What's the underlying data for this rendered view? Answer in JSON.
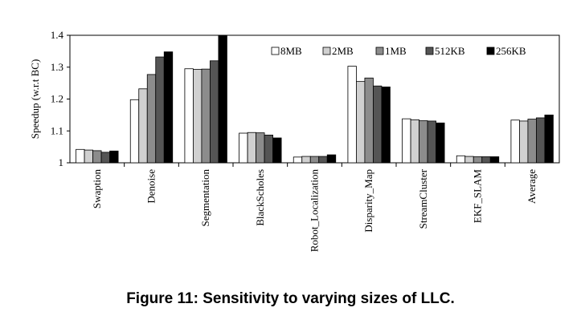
{
  "caption": "Figure 11: Sensitivity to varying sizes of LLC.",
  "chart_data": {
    "type": "bar",
    "ylabel": "Speedup (w.r.t BC)",
    "xlabel": "",
    "ylim": [
      1,
      1.4
    ],
    "yticks": [
      "1",
      "1.1",
      "1.2",
      "1.3",
      "1.4"
    ],
    "grid": false,
    "legend_position": "top-right",
    "categories": [
      "Swaption",
      "Denoise",
      "Segmentation",
      "BlackScholes",
      "Robot_Localization",
      "Disparity_Map",
      "StreamCluster",
      "EKF_SLAM",
      "Average"
    ],
    "series": [
      {
        "name": "8MB",
        "color": "#ffffff",
        "values": [
          1.042,
          1.198,
          1.295,
          1.093,
          1.018,
          1.303,
          1.138,
          1.022,
          1.134
        ]
      },
      {
        "name": "2MB",
        "color": "#d0d0d0",
        "values": [
          1.04,
          1.232,
          1.293,
          1.095,
          1.02,
          1.255,
          1.135,
          1.02,
          1.131
        ]
      },
      {
        "name": "1MB",
        "color": "#8c8c8c",
        "values": [
          1.038,
          1.277,
          1.294,
          1.094,
          1.02,
          1.266,
          1.132,
          1.019,
          1.137
        ]
      },
      {
        "name": "512KB",
        "color": "#555555",
        "values": [
          1.033,
          1.332,
          1.32,
          1.087,
          1.02,
          1.241,
          1.131,
          1.019,
          1.141
        ]
      },
      {
        "name": "256KB",
        "color": "#000000",
        "values": [
          1.037,
          1.348,
          1.4,
          1.078,
          1.025,
          1.238,
          1.125,
          1.019,
          1.15
        ]
      }
    ]
  }
}
